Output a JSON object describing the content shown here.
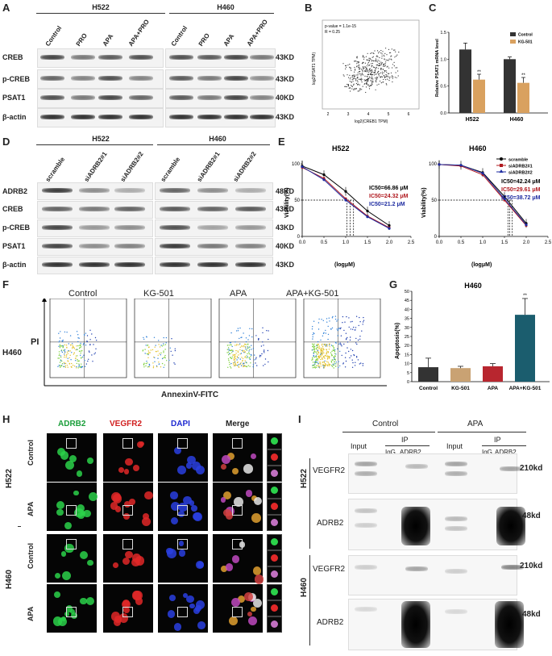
{
  "panels": {
    "A": {
      "letter": "A",
      "groups": [
        "H522",
        "H460"
      ],
      "lanes": [
        "Control",
        "PRO",
        "APA",
        "APA+PRO"
      ],
      "rows": [
        "CREB",
        "p-CREB",
        "PSAT1",
        "β-actin"
      ],
      "kd": [
        "43KD",
        "43KD",
        "40KD",
        "43KD"
      ]
    },
    "B": {
      "letter": "B",
      "pvalue": "p-value = 1.1e-15",
      "r": "R = 0.25",
      "ylabel": "log2(PSAT1 TPM)",
      "xlabel": "log2(CREB1 TPM)",
      "xticks": [
        "2",
        "3",
        "4",
        "5",
        "6"
      ]
    },
    "C": {
      "letter": "C",
      "ylabel": "Relative PSAT1 mRNA level",
      "legend": [
        "Control",
        "KG-501"
      ],
      "sig": "**"
    },
    "D": {
      "letter": "D",
      "groups": [
        "H522",
        "H460"
      ],
      "lanes": [
        "scramble",
        "siADRB2#1",
        "siADRB2#2"
      ],
      "rows": [
        "ADRB2",
        "CREB",
        "p-CREB",
        "PSAT1",
        "β-actin"
      ],
      "kd": [
        "48KD",
        "43KD",
        "43KD",
        "40KD",
        "43KD"
      ]
    },
    "E": {
      "letter": "E",
      "titles": [
        "H522",
        "H460"
      ],
      "ylabel": "Viability(%)",
      "xlabel": "(logμM)",
      "legend": [
        "scramble",
        "siADRB2#1",
        "siADRB2#2"
      ],
      "ic50_h522": [
        "IC50=66.86 μM",
        "IC50=24.32 μM",
        "IC50=21.2 μM"
      ],
      "ic50_h460": [
        "IC50=42.24 μM",
        "IC50=29.61 μM",
        "IC50=38.72 μM"
      ],
      "xticks": [
        "0.0",
        "0.5",
        "1.0",
        "1.5",
        "2.0",
        "2.5"
      ],
      "yticks": [
        "0",
        "50",
        "100"
      ]
    },
    "F": {
      "letter": "F",
      "conditions": [
        "Control",
        "KG-501",
        "APA",
        "APA+KG-501"
      ],
      "cell": "H460",
      "ylabel": "PI",
      "xlabel": "AnnexinV-FITC"
    },
    "G": {
      "letter": "G",
      "title": "H460",
      "ylabel": "Apoptosis(%)",
      "yticks": [
        "0",
        "5",
        "10",
        "15",
        "20",
        "25",
        "30",
        "35",
        "40",
        "45",
        "50"
      ],
      "sig": "**"
    },
    "H": {
      "letter": "H",
      "channels": [
        "ADRB2",
        "VEGFR2",
        "DAPI",
        "Merge"
      ],
      "cells": [
        "H522",
        "H460"
      ],
      "conditions": [
        "Control",
        "APA"
      ]
    },
    "I": {
      "letter": "I",
      "groups": [
        "Control",
        "APA"
      ],
      "input": "Input",
      "ip": "IP",
      "igg": "IgG",
      "adrb2": "ADRB2",
      "cells": [
        "H522",
        "H460"
      ],
      "rows": [
        "VEGFR2",
        "ADRB2"
      ],
      "kd": [
        "210kd",
        "48kd"
      ]
    }
  },
  "chart_data": [
    {
      "type": "bar",
      "panel": "C",
      "categories": [
        "H522",
        "H460"
      ],
      "series": [
        {
          "name": "Control",
          "values": [
            1.18,
            1.0
          ],
          "errors": [
            0.12,
            0.04
          ]
        },
        {
          "name": "KG-501",
          "values": [
            0.62,
            0.56
          ],
          "errors": [
            0.1,
            0.1
          ]
        }
      ],
      "ylabel": "Relative PSAT1 mRNA level",
      "ylim": [
        0,
        1.5
      ],
      "colors": [
        "#333333",
        "#d9a15f"
      ]
    },
    {
      "type": "bar",
      "panel": "G",
      "title": "H460",
      "categories": [
        "Control",
        "KG-501",
        "APA",
        "APA+KG-501"
      ],
      "values": [
        8,
        7.5,
        8.5,
        37
      ],
      "errors": [
        5,
        1,
        1.5,
        9
      ],
      "ylabel": "Apoptosis(%)",
      "ylim": [
        0,
        50
      ],
      "colors": [
        "#333333",
        "#c9a273",
        "#b8262f",
        "#1b5d6e"
      ]
    },
    {
      "type": "line",
      "panel": "E-H522",
      "title": "H522",
      "x": [
        0.0,
        0.5,
        1.0,
        1.5,
        2.0
      ],
      "series": [
        {
          "name": "scramble",
          "values": [
            97,
            85,
            62,
            35,
            15
          ]
        },
        {
          "name": "siADRB2#1",
          "values": [
            95,
            80,
            52,
            28,
            12
          ]
        },
        {
          "name": "siADRB2#2",
          "values": [
            96,
            78,
            50,
            27,
            11
          ]
        }
      ],
      "xlabel": "(logμM)",
      "ylabel": "Viability(%)",
      "ylim": [
        0,
        100
      ],
      "xlim": [
        0,
        2.5
      ]
    },
    {
      "type": "line",
      "panel": "E-H460",
      "title": "H460",
      "x": [
        0.0,
        0.5,
        1.0,
        1.5,
        2.0
      ],
      "series": [
        {
          "name": "scramble",
          "values": [
            99,
            98,
            88,
            55,
            18
          ]
        },
        {
          "name": "siADRB2#1",
          "values": [
            99,
            97,
            85,
            50,
            15
          ]
        },
        {
          "name": "siADRB2#2",
          "values": [
            99,
            98,
            87,
            52,
            16
          ]
        }
      ],
      "xlabel": "(logμM)",
      "ylabel": "Viability(%)",
      "ylim": [
        0,
        100
      ],
      "xlim": [
        0,
        2.5
      ]
    }
  ]
}
